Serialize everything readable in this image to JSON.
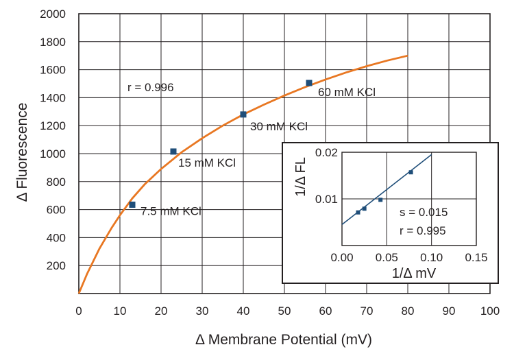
{
  "chart_data": [
    {
      "type": "scatter",
      "title": "",
      "xlabel": "Δ Membrane Potential (mV)",
      "ylabel": "Δ Fluorescence",
      "xlim": [
        0,
        100
      ],
      "ylim": [
        0,
        2000
      ],
      "xticks": [
        0,
        10,
        20,
        30,
        40,
        50,
        60,
        70,
        80,
        90,
        100
      ],
      "yticks": [
        200,
        400,
        600,
        800,
        1000,
        1200,
        1400,
        1600,
        1800,
        2000
      ],
      "grid": true,
      "colors": {
        "points": "#1f4e79",
        "curve": "#e87722",
        "grid": "#231f20"
      },
      "points": [
        {
          "x": 13,
          "y": 635,
          "label": "7.5 mM KCl"
        },
        {
          "x": 23,
          "y": 1015,
          "label": "15 mM KCl"
        },
        {
          "x": 40,
          "y": 1280,
          "label": "30  mM KCl"
        },
        {
          "x": 56,
          "y": 1505,
          "label": "60 mM KCl"
        }
      ],
      "fit_curve": {
        "x": [
          0,
          2,
          5,
          8,
          10,
          13,
          16,
          20,
          25,
          30,
          35,
          40,
          45,
          50,
          55,
          60,
          65,
          70,
          75,
          80
        ],
        "y": [
          0,
          140,
          320,
          470,
          560,
          680,
          780,
          890,
          1010,
          1110,
          1200,
          1280,
          1350,
          1415,
          1475,
          1530,
          1580,
          1625,
          1665,
          1700
        ]
      },
      "annotations": [
        {
          "text": "r =  0.996"
        }
      ]
    },
    {
      "type": "scatter",
      "title": "",
      "inset": true,
      "xlabel": "1/Δ mV",
      "ylabel": "1/Δ FL",
      "xlim": [
        0,
        0.15
      ],
      "ylim": [
        0,
        0.02
      ],
      "xticks": [
        "0.00",
        "0.05",
        "0.10",
        "0.15"
      ],
      "yticks": [
        "0.01",
        "0.02"
      ],
      "grid": true,
      "colors": {
        "points": "#1f4e79",
        "line": "#1f4e79"
      },
      "points": [
        {
          "x": 0.018,
          "y": 0.0071
        },
        {
          "x": 0.025,
          "y": 0.0079
        },
        {
          "x": 0.043,
          "y": 0.0098
        },
        {
          "x": 0.077,
          "y": 0.0157
        }
      ],
      "fit_line": {
        "x": [
          0,
          0.1
        ],
        "y": [
          0.0045,
          0.0195
        ]
      },
      "annotations": [
        {
          "text": "s = 0.015"
        },
        {
          "text": "r = 0.995"
        }
      ]
    }
  ]
}
